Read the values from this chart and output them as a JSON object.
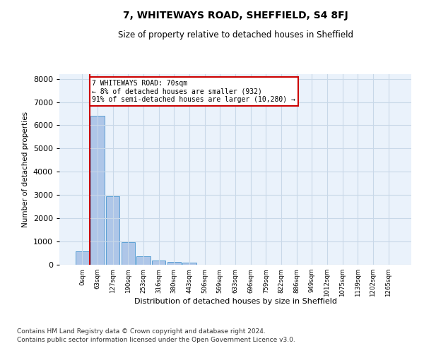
{
  "title": "7, WHITEWAYS ROAD, SHEFFIELD, S4 8FJ",
  "subtitle": "Size of property relative to detached houses in Sheffield",
  "xlabel": "Distribution of detached houses by size in Sheffield",
  "ylabel": "Number of detached properties",
  "bar_labels": [
    "0sqm",
    "63sqm",
    "127sqm",
    "190sqm",
    "253sqm",
    "316sqm",
    "380sqm",
    "443sqm",
    "506sqm",
    "569sqm",
    "633sqm",
    "696sqm",
    "759sqm",
    "822sqm",
    "886sqm",
    "949sqm",
    "1012sqm",
    "1075sqm",
    "1139sqm",
    "1202sqm",
    "1265sqm"
  ],
  "bar_values": [
    570,
    6400,
    2950,
    960,
    370,
    175,
    120,
    90,
    0,
    0,
    0,
    0,
    0,
    0,
    0,
    0,
    0,
    0,
    0,
    0,
    0
  ],
  "bar_color": "#aec6e8",
  "bar_edge_color": "#5a9fd4",
  "annotation_box_text": "7 WHITEWAYS ROAD: 70sqm\n← 8% of detached houses are smaller (932)\n91% of semi-detached houses are larger (10,280) →",
  "annotation_box_color": "#cc0000",
  "annotation_box_bg": "#ffffff",
  "property_line_x": 0.5,
  "property_line_color": "#cc0000",
  "ylim": [
    0,
    8200
  ],
  "yticks": [
    0,
    1000,
    2000,
    3000,
    4000,
    5000,
    6000,
    7000,
    8000
  ],
  "grid_color": "#c8d8e8",
  "bg_color": "#eaf2fb",
  "footer_line1": "Contains HM Land Registry data © Crown copyright and database right 2024.",
  "footer_line2": "Contains public sector information licensed under the Open Government Licence v3.0."
}
